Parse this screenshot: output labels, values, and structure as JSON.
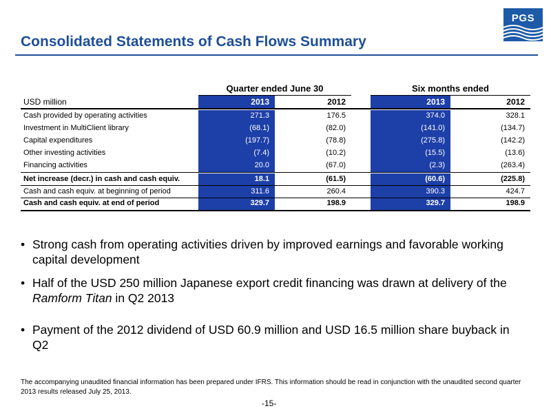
{
  "header": {
    "title": "Consolidated Statements of Cash Flows Summary",
    "logo_text": "PGS"
  },
  "colors": {
    "brand_blue": "#1d4e98",
    "table_highlight": "#1d3fa8"
  },
  "table": {
    "group_headers": [
      "Quarter ended June 30",
      "Six months ended"
    ],
    "unit_label": "USD million",
    "years": [
      "2013",
      "2012",
      "2013",
      "2012"
    ],
    "rows": [
      {
        "label": "Cash provided by operating activities",
        "values": [
          "271.3",
          "176.5",
          "374.0",
          "328.1"
        ],
        "bold": false
      },
      {
        "label": "Investment in MultiClient library",
        "values": [
          "(68.1)",
          "(82.0)",
          "(141.0)",
          "(134.7)"
        ],
        "bold": false
      },
      {
        "label": "Capital expenditures",
        "values": [
          "(197.7)",
          "(78.8)",
          "(275.8)",
          "(142.2)"
        ],
        "bold": false
      },
      {
        "label": "Other investing activities",
        "values": [
          "(7.4)",
          "(10.2)",
          "(15.5)",
          "(13.6)"
        ],
        "bold": false
      },
      {
        "label": "Financing activities",
        "values": [
          "20.0",
          "(67.0)",
          "(2.3)",
          "(263.4)"
        ],
        "bold": false
      },
      {
        "label": "Net increase (decr.) in cash and cash equiv.",
        "values": [
          "18.1",
          "(61.5)",
          "(60.6)",
          "(225.8)"
        ],
        "bold": true
      },
      {
        "label": "Cash and cash equiv. at beginning of period",
        "values": [
          "311.6",
          "260.4",
          "390.3",
          "424.7"
        ],
        "bold": false
      },
      {
        "label": "Cash and cash equiv. at end of period",
        "values": [
          "329.7",
          "198.9",
          "329.7",
          "198.9"
        ],
        "bold": true
      }
    ]
  },
  "bullets": [
    {
      "text": "Strong cash from operating activities driven by improved earnings and favorable working capital development"
    },
    {
      "before": "Half of the USD 250 million Japanese export credit financing was drawn at delivery of the ",
      "italic": "Ramform Titan",
      "after": " in Q2 2013"
    },
    {
      "text": "Payment of the 2012 dividend of USD 60.9 million and USD 16.5 million share buyback in Q2"
    }
  ],
  "bullet_symbol": "•",
  "footnote": "The accompanying unaudited financial information has been prepared under IFRS. This information should be read in conjunction with the unaudited second quarter 2013 results released July 25, 2013.",
  "page_number": "-15-"
}
